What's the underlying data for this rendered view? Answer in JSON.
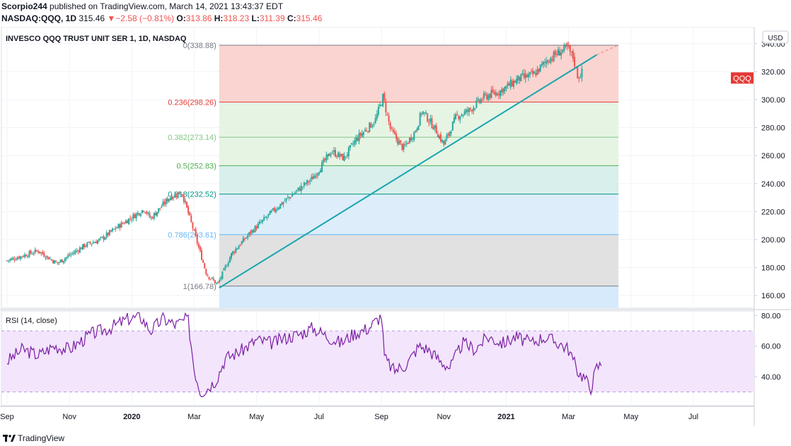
{
  "header": {
    "author": "Scorpio244",
    "published_text": "published on TradingView.com, March 14, 2021 13:43:37 EDT",
    "symbol": "NASDAQ:QQQ, 1D",
    "last": "315.46",
    "change_arrow": "▼",
    "change": "−2.58 (−0.81%)",
    "o_label": "O:",
    "o_value": "313.86",
    "h_label": "H:",
    "h_value": "318.23",
    "l_label": "L:",
    "l_value": "311.39",
    "c_label": "C:",
    "c_value": "315.46"
  },
  "footer": {
    "brand": "TradingView"
  },
  "colors": {
    "up": "#26a69a",
    "down": "#ef5350",
    "trendline": "#1aa5b0",
    "rsi_line": "#7b1fa2",
    "rsi_band": "#f3e5fc",
    "badge": "#e53935",
    "fib_0_236": "#fad4d0",
    "fib_236_382": "#e6f4e4",
    "fib_382_5": "#e6f4e4",
    "fib_5_618": "#d8efec",
    "fib_618_786": "#ddeefa",
    "fib_786_1": "#e1e1e1",
    "fib_below": "#d6eafb"
  },
  "chart_data": [
    {
      "type": "candlestick",
      "title": "INVESCO QQQ TRUST UNIT SER 1, 1D, NASDAQ",
      "currency": "USD",
      "symbol_badge": "QQQ",
      "y_ticks": [
        "340.00",
        "320.00",
        "300.00",
        "280.00",
        "260.00",
        "240.00",
        "220.00",
        "200.00",
        "180.00",
        "160.00"
      ],
      "y_tick_values": [
        340,
        320,
        300,
        280,
        260,
        240,
        220,
        200,
        180,
        160
      ],
      "ylim": [
        151,
        352
      ],
      "x_labels": [
        "Sep",
        "Nov",
        "2020",
        "Mar",
        "May",
        "Jul",
        "Sep",
        "Nov",
        "2021",
        "Mar",
        "May",
        "Jul"
      ],
      "x_label_bold": [
        false,
        false,
        true,
        false,
        false,
        false,
        false,
        false,
        true,
        false,
        false,
        false
      ],
      "x_label_months": [
        0,
        2,
        4,
        6,
        8,
        10,
        12,
        14,
        16,
        18,
        20,
        22
      ],
      "x_start_month": -0.18,
      "x_end_month": 23.95,
      "last_month": 18.45,
      "fib_levels": [
        {
          "ratio": "0",
          "price": "(338.88)",
          "label_color": "#787b86"
        },
        {
          "ratio": "0.236",
          "price": "(298.26)",
          "label_color": "#e53935"
        },
        {
          "ratio": "0.382",
          "price": "(273.14)",
          "label_color": "#81c784"
        },
        {
          "ratio": "0.5",
          "price": "(252.83)",
          "label_color": "#4caf50"
        },
        {
          "ratio": "0.618",
          "price": "(232.52)",
          "label_color": "#009688"
        },
        {
          "ratio": "0.786",
          "price": "(203.61)",
          "label_color": "#64b5f6"
        },
        {
          "ratio": "1",
          "price": "(166.78)",
          "label_color": "#787b86"
        }
      ],
      "fib_values": [
        338.88,
        298.26,
        273.14,
        252.83,
        232.52,
        203.61,
        166.78
      ],
      "fib_start_month": 6.8,
      "fib_end_month": 19.6,
      "trendline": [
        {
          "month": 6.8,
          "price": 165.5
        },
        {
          "month": 18.9,
          "price": 332
        }
      ],
      "trendline_ext": [
        {
          "month": 18.9,
          "price": 332
        },
        {
          "month": 19.6,
          "price": 339
        }
      ],
      "anchors": [
        {
          "month": 0.0,
          "price": 185
        },
        {
          "month": 1.0,
          "price": 192
        },
        {
          "month": 1.6,
          "price": 183
        },
        {
          "month": 2.5,
          "price": 196
        },
        {
          "month": 3.0,
          "price": 200
        },
        {
          "month": 3.6,
          "price": 210
        },
        {
          "month": 4.4,
          "price": 222
        },
        {
          "month": 4.6,
          "price": 215
        },
        {
          "month": 5.2,
          "price": 230
        },
        {
          "month": 5.6,
          "price": 234
        },
        {
          "month": 6.0,
          "price": 205
        },
        {
          "month": 6.4,
          "price": 175
        },
        {
          "month": 6.75,
          "price": 168
        },
        {
          "month": 7.2,
          "price": 190
        },
        {
          "month": 7.8,
          "price": 205
        },
        {
          "month": 8.6,
          "price": 222
        },
        {
          "month": 9.3,
          "price": 235
        },
        {
          "month": 9.8,
          "price": 244
        },
        {
          "month": 10.4,
          "price": 263
        },
        {
          "month": 10.8,
          "price": 258
        },
        {
          "month": 11.2,
          "price": 272
        },
        {
          "month": 11.8,
          "price": 285
        },
        {
          "month": 12.05,
          "price": 302
        },
        {
          "month": 12.3,
          "price": 278
        },
        {
          "month": 12.7,
          "price": 265
        },
        {
          "month": 13.1,
          "price": 278
        },
        {
          "month": 13.3,
          "price": 292
        },
        {
          "month": 13.7,
          "price": 280
        },
        {
          "month": 14.0,
          "price": 268
        },
        {
          "month": 14.4,
          "price": 288
        },
        {
          "month": 14.8,
          "price": 292
        },
        {
          "month": 15.3,
          "price": 302
        },
        {
          "month": 15.8,
          "price": 306
        },
        {
          "month": 16.4,
          "price": 315
        },
        {
          "month": 16.9,
          "price": 318
        },
        {
          "month": 17.3,
          "price": 328
        },
        {
          "month": 17.7,
          "price": 334
        },
        {
          "month": 17.95,
          "price": 337
        },
        {
          "month": 18.15,
          "price": 330
        },
        {
          "month": 18.3,
          "price": 316
        },
        {
          "month": 18.45,
          "price": 320
        },
        {
          "month": 18.7,
          "price": 301
        },
        {
          "month": 18.9,
          "price": 313
        },
        {
          "month": 19.1,
          "price": 315
        }
      ]
    },
    {
      "type": "line",
      "title": "RSI (14, close)",
      "y_ticks": [
        "80.00",
        "60.00",
        "40.00"
      ],
      "y_tick_values": [
        80,
        60,
        40
      ],
      "ylim": [
        21,
        83
      ],
      "bands": [
        70,
        30
      ],
      "anchors": [
        {
          "month": 0.0,
          "value": 50
        },
        {
          "month": 0.5,
          "value": 58
        },
        {
          "month": 1.0,
          "value": 54
        },
        {
          "month": 1.5,
          "value": 60
        },
        {
          "month": 2.0,
          "value": 58
        },
        {
          "month": 2.7,
          "value": 68
        },
        {
          "month": 3.3,
          "value": 72
        },
        {
          "month": 3.9,
          "value": 78
        },
        {
          "month": 4.3,
          "value": 79
        },
        {
          "month": 4.6,
          "value": 70
        },
        {
          "month": 5.0,
          "value": 78
        },
        {
          "month": 5.2,
          "value": 76
        },
        {
          "month": 5.4,
          "value": 74
        },
        {
          "month": 5.8,
          "value": 78
        },
        {
          "month": 6.0,
          "value": 45
        },
        {
          "month": 6.2,
          "value": 30
        },
        {
          "month": 6.4,
          "value": 32
        },
        {
          "month": 6.7,
          "value": 38
        },
        {
          "month": 7.0,
          "value": 52
        },
        {
          "month": 7.5,
          "value": 57
        },
        {
          "month": 8.0,
          "value": 64
        },
        {
          "month": 8.5,
          "value": 62
        },
        {
          "month": 9.0,
          "value": 66
        },
        {
          "month": 9.4,
          "value": 68
        },
        {
          "month": 9.8,
          "value": 72
        },
        {
          "month": 10.3,
          "value": 66
        },
        {
          "month": 10.7,
          "value": 62
        },
        {
          "month": 11.1,
          "value": 68
        },
        {
          "month": 11.6,
          "value": 72
        },
        {
          "month": 12.0,
          "value": 80
        },
        {
          "month": 12.1,
          "value": 52
        },
        {
          "month": 12.4,
          "value": 44
        },
        {
          "month": 12.8,
          "value": 48
        },
        {
          "month": 13.2,
          "value": 60
        },
        {
          "month": 13.5,
          "value": 58
        },
        {
          "month": 13.9,
          "value": 50
        },
        {
          "month": 14.2,
          "value": 46
        },
        {
          "month": 14.6,
          "value": 62
        },
        {
          "month": 15.0,
          "value": 58
        },
        {
          "month": 15.4,
          "value": 66
        },
        {
          "month": 15.9,
          "value": 62
        },
        {
          "month": 16.3,
          "value": 66
        },
        {
          "month": 16.8,
          "value": 62
        },
        {
          "month": 17.2,
          "value": 66
        },
        {
          "month": 17.7,
          "value": 62
        },
        {
          "month": 18.0,
          "value": 58
        },
        {
          "month": 18.2,
          "value": 48
        },
        {
          "month": 18.35,
          "value": 42
        },
        {
          "month": 18.5,
          "value": 40
        },
        {
          "month": 18.7,
          "value": 32
        },
        {
          "month": 18.9,
          "value": 46
        },
        {
          "month": 19.05,
          "value": 48
        }
      ]
    }
  ]
}
